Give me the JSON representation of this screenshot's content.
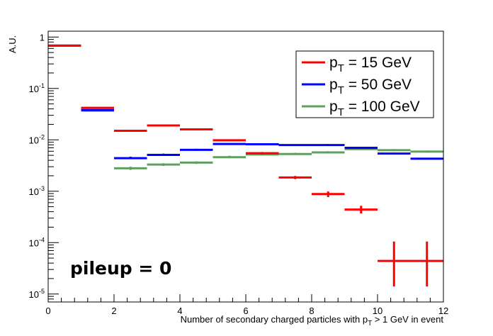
{
  "chart_data": {
    "type": "line",
    "style": "step histogram with error bars",
    "xlabel": {
      "main": "Number of secondary charged particles with p",
      "sub": "T",
      "tail": " > 1 GeV in event"
    },
    "ylabel": "A.U.",
    "xlim": [
      0,
      12
    ],
    "ylim": [
      7e-06,
      1.3
    ],
    "yscale": "log",
    "grid": false,
    "legend_position": "top-right",
    "x_ticks": [
      "0",
      "2",
      "4",
      "6",
      "8",
      "10",
      "12"
    ],
    "y_ticks": [
      {
        "value": 1e-05,
        "base": "10",
        "exp": "-5"
      },
      {
        "value": 0.0001,
        "base": "10",
        "exp": "-4"
      },
      {
        "value": 0.001,
        "base": "10",
        "exp": "-3"
      },
      {
        "value": 0.01,
        "base": "10",
        "exp": "-2"
      },
      {
        "value": 0.1,
        "base": "10",
        "exp": "-1"
      },
      {
        "value": 1,
        "base": "1",
        "exp": ""
      }
    ],
    "annotation": "pileup = 0",
    "series": [
      {
        "name": "p_T = 15 GeV",
        "legend": {
          "pre": "p",
          "sub": "T",
          "post": " = 15 GeV"
        },
        "color": "#ff0000",
        "bins": [
          {
            "x0": 0,
            "x1": 1,
            "y": 0.68,
            "err": [
              0,
              0
            ]
          },
          {
            "x0": 1,
            "x1": 2,
            "y": 0.042,
            "err": [
              0,
              0
            ]
          },
          {
            "x0": 2,
            "x1": 3,
            "y": 0.015,
            "err": [
              0,
              0
            ]
          },
          {
            "x0": 3,
            "x1": 4,
            "y": 0.019,
            "err": [
              0,
              0
            ]
          },
          {
            "x0": 4,
            "x1": 5,
            "y": 0.016,
            "err": [
              0,
              0
            ]
          },
          {
            "x0": 5,
            "x1": 6,
            "y": 0.0098,
            "err": [
              0,
              0
            ]
          },
          {
            "x0": 6,
            "x1": 7,
            "y": 0.0055,
            "err": [
              0.0052,
              0.0058
            ]
          },
          {
            "x0": 7,
            "x1": 8,
            "y": 0.00185,
            "err": [
              0.00172,
              0.00198
            ]
          },
          {
            "x0": 8,
            "x1": 9,
            "y": 0.00088,
            "err": [
              0.00077,
              0.00099
            ]
          },
          {
            "x0": 9,
            "x1": 10,
            "y": 0.00044,
            "err": [
              0.00037,
              0.00052
            ]
          },
          {
            "x0": 10,
            "x1": 11,
            "y": 4.4e-05,
            "err": [
              1.4e-05,
              0.000105
            ]
          },
          {
            "x0": 11,
            "x1": 12,
            "y": 4.4e-05,
            "err": [
              1.4e-05,
              0.000105
            ]
          }
        ]
      },
      {
        "name": "p_T = 50 GeV",
        "legend": {
          "pre": "p",
          "sub": "T",
          "post": " = 50 GeV"
        },
        "color": "#0000ff",
        "bins": [
          {
            "x0": 0,
            "x1": 1,
            "y": 0.68,
            "err": [
              0,
              0
            ]
          },
          {
            "x0": 1,
            "x1": 2,
            "y": 0.038,
            "err": [
              0,
              0
            ]
          },
          {
            "x0": 2,
            "x1": 3,
            "y": 0.0044,
            "err": [
              0.0042,
              0.0047
            ]
          },
          {
            "x0": 3,
            "x1": 4,
            "y": 0.0051,
            "err": [
              0.0049,
              0.0054
            ]
          },
          {
            "x0": 4,
            "x1": 5,
            "y": 0.0064,
            "err": [
              0.0062,
              0.0067
            ]
          },
          {
            "x0": 5,
            "x1": 6,
            "y": 0.0083,
            "err": [
              0,
              0
            ]
          },
          {
            "x0": 6,
            "x1": 7,
            "y": 0.0082,
            "err": [
              0,
              0
            ]
          },
          {
            "x0": 7,
            "x1": 8,
            "y": 0.0079,
            "err": [
              0,
              0
            ]
          },
          {
            "x0": 8,
            "x1": 9,
            "y": 0.0079,
            "err": [
              0.0076,
              0.0083
            ]
          },
          {
            "x0": 9,
            "x1": 10,
            "y": 0.007,
            "err": [
              0.0067,
              0.0073
            ]
          },
          {
            "x0": 10,
            "x1": 11,
            "y": 0.0054,
            "err": [
              0,
              0
            ]
          },
          {
            "x0": 11,
            "x1": 12,
            "y": 0.0043,
            "err": [
              0,
              0
            ]
          }
        ]
      },
      {
        "name": "p_T = 100 GeV",
        "legend": {
          "pre": "p",
          "sub": "T",
          "post": " = 100 GeV"
        },
        "color": "#5f9f5f",
        "bins": [
          {
            "x0": 0,
            "x1": 1,
            "y": 0.68,
            "err": [
              0,
              0
            ]
          },
          {
            "x0": 1,
            "x1": 2,
            "y": 0.037,
            "err": [
              0,
              0
            ]
          },
          {
            "x0": 2,
            "x1": 3,
            "y": 0.0028,
            "err": [
              0.0026,
              0.003
            ]
          },
          {
            "x0": 3,
            "x1": 4,
            "y": 0.0033,
            "err": [
              0.0031,
              0.0035
            ]
          },
          {
            "x0": 4,
            "x1": 5,
            "y": 0.0036,
            "err": [
              0.0034,
              0.0038
            ]
          },
          {
            "x0": 5,
            "x1": 6,
            "y": 0.0046,
            "err": [
              0.0044,
              0.0049
            ]
          },
          {
            "x0": 6,
            "x1": 7,
            "y": 0.0052,
            "err": [
              0.005,
              0.0055
            ]
          },
          {
            "x0": 7,
            "x1": 8,
            "y": 0.0053,
            "err": [
              0.0051,
              0.0056
            ]
          },
          {
            "x0": 8,
            "x1": 9,
            "y": 0.0057,
            "err": [
              0.0055,
              0.006
            ]
          },
          {
            "x0": 9,
            "x1": 10,
            "y": 0.0066,
            "err": [
              0.0064,
              0.0069
            ]
          },
          {
            "x0": 10,
            "x1": 11,
            "y": 0.0063,
            "err": [
              0.0061,
              0.0066
            ]
          },
          {
            "x0": 11,
            "x1": 12,
            "y": 0.0059,
            "err": [
              0.0057,
              0.0062
            ]
          }
        ]
      }
    ]
  }
}
